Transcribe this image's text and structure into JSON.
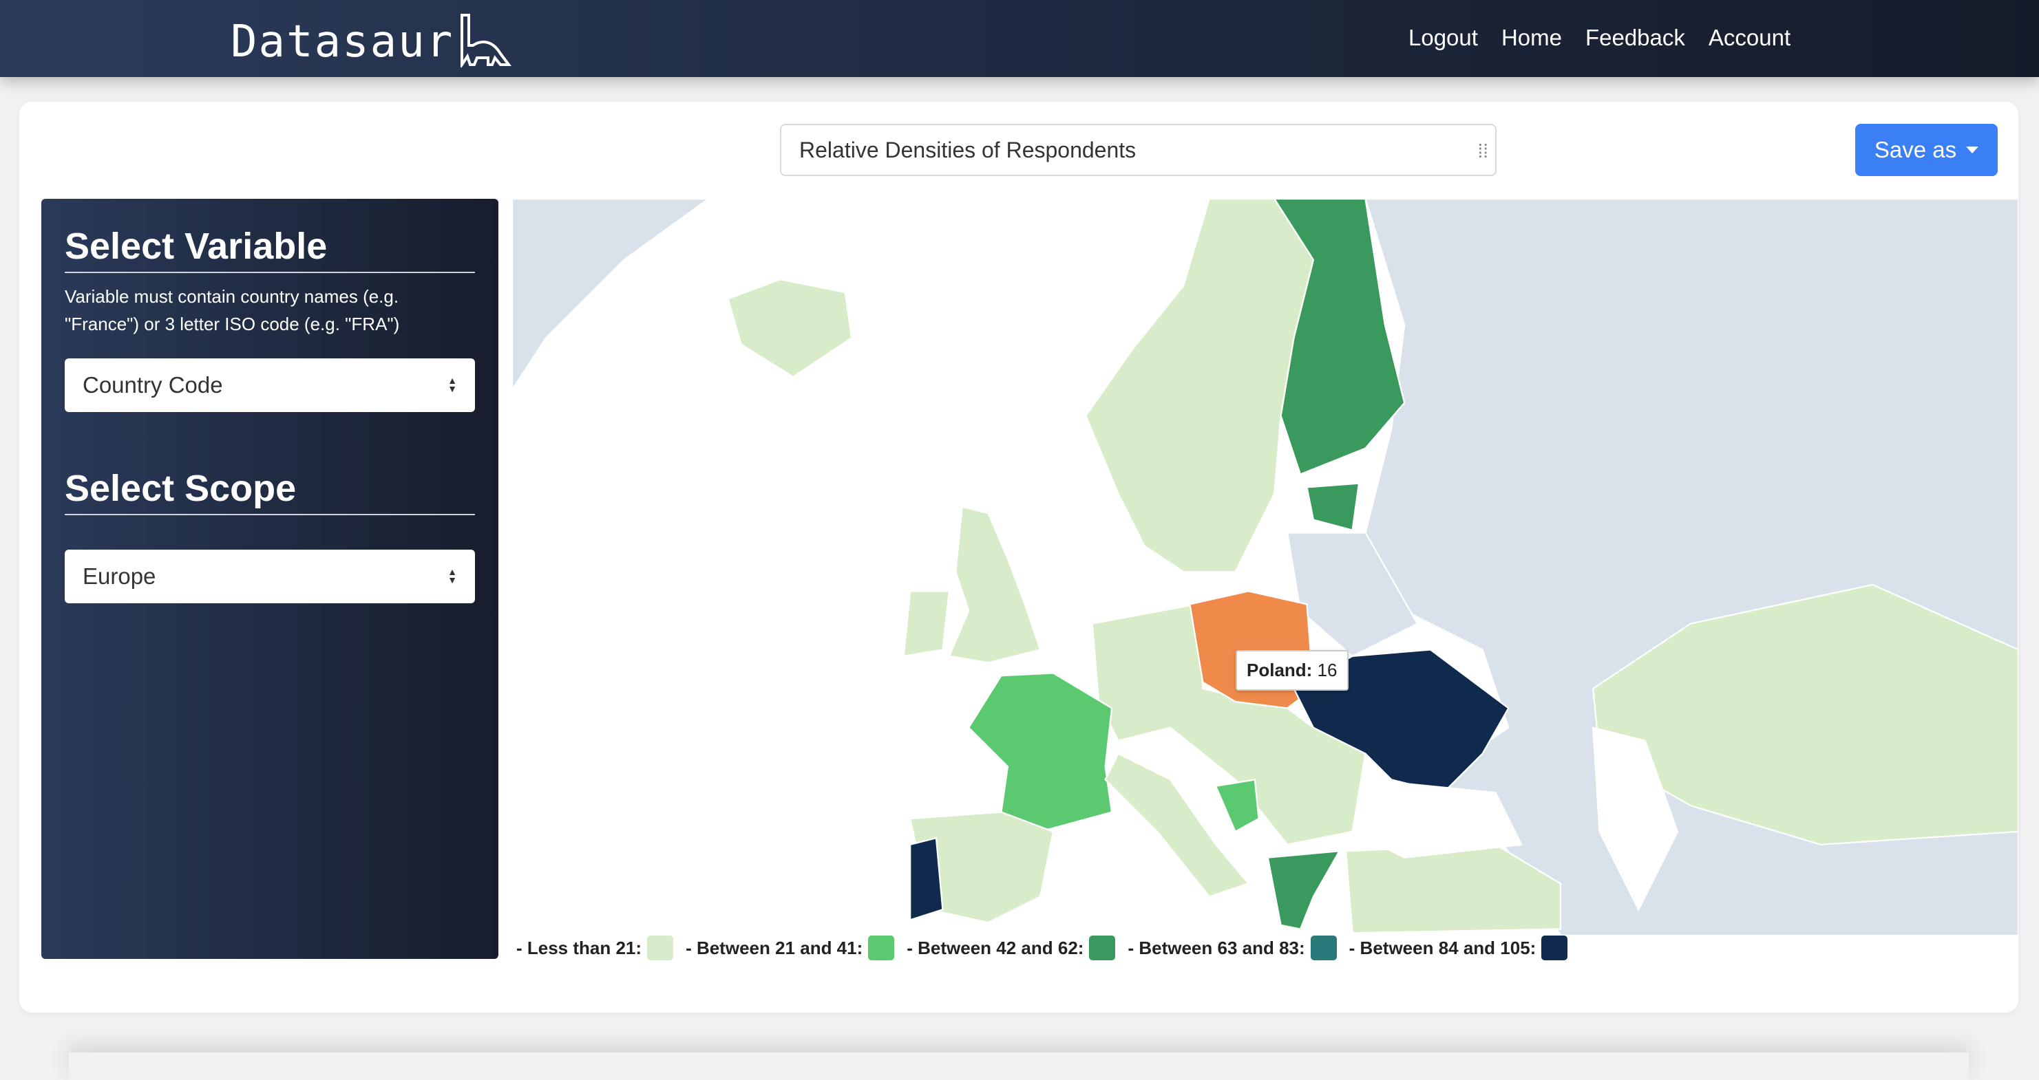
{
  "nav": {
    "brand": "Datasaur",
    "links": [
      "Logout",
      "Home",
      "Feedback",
      "Account"
    ]
  },
  "toolbar": {
    "title_value": "Relative Densities of Respondents",
    "save_label": "Save as"
  },
  "sidebar": {
    "variable_heading": "Select Variable",
    "variable_help": "Variable must contain country names (e.g. \"France\") or 3 letter ISO code (e.g. \"FRA\")",
    "variable_value": "Country Code",
    "scope_heading": "Select Scope",
    "scope_value": "Europe"
  },
  "map": {
    "tooltip": {
      "country": "Poland:",
      "value": "16"
    },
    "highlight_color": "#f08a4b",
    "legend": [
      {
        "label": "- Less than 21:",
        "color": "#d9ecc9"
      },
      {
        "label": "- Between 21 and 41:",
        "color": "#5ac96f"
      },
      {
        "label": "- Between 42 and 62:",
        "color": "#3a9a5e"
      },
      {
        "label": "- Between 63 and 83:",
        "color": "#2b7a7a"
      },
      {
        "label": "- Between 84 and 105:",
        "color": "#0f2a4d"
      }
    ]
  }
}
